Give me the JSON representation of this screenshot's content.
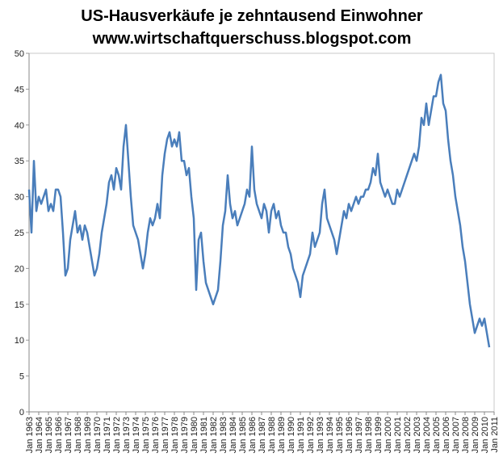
{
  "chart_data": {
    "type": "line",
    "title": "US-Hausverkäufe je zehntausend Einwohner",
    "subtitle": "www.wirtschaftquerschuss.blogspot.com",
    "categories": [
      "Jan 1963",
      null,
      null,
      null,
      "Jan 1964",
      null,
      null,
      null,
      "Jan 1965",
      null,
      null,
      null,
      "Jan 1966",
      null,
      null,
      null,
      "Jan 1967",
      null,
      null,
      null,
      "Jan 1968",
      null,
      null,
      null,
      "Jan 1969",
      null,
      null,
      null,
      "Jan 1970",
      null,
      null,
      null,
      "Jan 1971",
      null,
      null,
      null,
      "Jan 1972",
      null,
      null,
      null,
      "Jan 1973",
      null,
      null,
      null,
      "Jan 1974",
      null,
      null,
      null,
      "Jan 1975",
      null,
      null,
      null,
      "Jan 1976",
      null,
      null,
      null,
      "Jan 1977",
      null,
      null,
      null,
      "Jan 1978",
      null,
      null,
      null,
      "Jan 1979",
      null,
      null,
      null,
      "Jan 1980",
      null,
      null,
      null,
      "Jan 1981",
      null,
      null,
      null,
      "Jan 1982",
      null,
      null,
      null,
      "Jan 1983",
      null,
      null,
      null,
      "Jan 1984",
      null,
      null,
      null,
      "Jan 1985",
      null,
      null,
      null,
      "Jan 1986",
      null,
      null,
      null,
      "Jan 1987",
      null,
      null,
      null,
      "Jan 1988",
      null,
      null,
      null,
      "Jan 1989",
      null,
      null,
      null,
      "Jan 1990",
      null,
      null,
      null,
      "Jan 1991",
      null,
      null,
      null,
      "Jan 1992",
      null,
      null,
      null,
      "Jan 1993",
      null,
      null,
      null,
      "Jan 1994",
      null,
      null,
      null,
      "Jan 1995",
      null,
      null,
      null,
      "Jan 1996",
      null,
      null,
      null,
      "Jan 1997",
      null,
      null,
      null,
      "Jan 1998",
      null,
      null,
      null,
      "Jan 1999",
      null,
      null,
      null,
      "Jan 2000",
      null,
      null,
      null,
      "Jan 2001",
      null,
      null,
      null,
      "Jan 2002",
      null,
      null,
      null,
      "Jan 2003",
      null,
      null,
      null,
      "Jan 2004",
      null,
      null,
      null,
      "Jan 2005",
      null,
      null,
      null,
      "Jan 2006",
      null,
      null,
      null,
      "Jan 2007",
      null,
      null,
      null,
      "Jan 2008",
      null,
      null,
      null,
      "Jan 2009",
      null,
      null,
      null,
      "Jan 2010",
      null,
      null,
      null,
      "Jan 2011"
    ],
    "series": [
      {
        "color": "#4a7ebb",
        "values": [
          31,
          25,
          35,
          28,
          30,
          29,
          30,
          31,
          28,
          29,
          28,
          31,
          31,
          30,
          25,
          19,
          20,
          24,
          26,
          28,
          25,
          26,
          24,
          26,
          25,
          23,
          21,
          19,
          20,
          22,
          25,
          27,
          29,
          32,
          33,
          31,
          34,
          33,
          31,
          37,
          40,
          35,
          30,
          26,
          25,
          24,
          22,
          20,
          22,
          25,
          27,
          26,
          27,
          29,
          27,
          33,
          36,
          38,
          39,
          37,
          38,
          37,
          39,
          35,
          35,
          33,
          34,
          30,
          27,
          17,
          24,
          25,
          21,
          18,
          17,
          16,
          15,
          16,
          17,
          21,
          26,
          28,
          33,
          29,
          27,
          28,
          26,
          27,
          28,
          29,
          31,
          30,
          37,
          31,
          29,
          28,
          27,
          29,
          28,
          25,
          28,
          29,
          27,
          28,
          26,
          25,
          25,
          23,
          22,
          20,
          19,
          18,
          16,
          19,
          20,
          21,
          22,
          25,
          23,
          24,
          25,
          29,
          31,
          27,
          26,
          25,
          24,
          22,
          24,
          26,
          28,
          27,
          29,
          28,
          29,
          30,
          29,
          30,
          30,
          31,
          31,
          32,
          34,
          33,
          36,
          32,
          31,
          30,
          31,
          30,
          29,
          29,
          31,
          30,
          31,
          32,
          33,
          34,
          35,
          36,
          35,
          37,
          41,
          40,
          43,
          40,
          42,
          44,
          44,
          46,
          47,
          43,
          42,
          38,
          35,
          33,
          30,
          28,
          26,
          23,
          21,
          18,
          15,
          13,
          11,
          12,
          13,
          12,
          13,
          11,
          9,
          null,
          null
        ]
      }
    ],
    "ylim": [
      0,
      50
    ],
    "yticks": [
      0,
      5,
      10,
      15,
      20,
      25,
      30,
      35,
      40,
      45,
      50
    ],
    "grid": false
  }
}
